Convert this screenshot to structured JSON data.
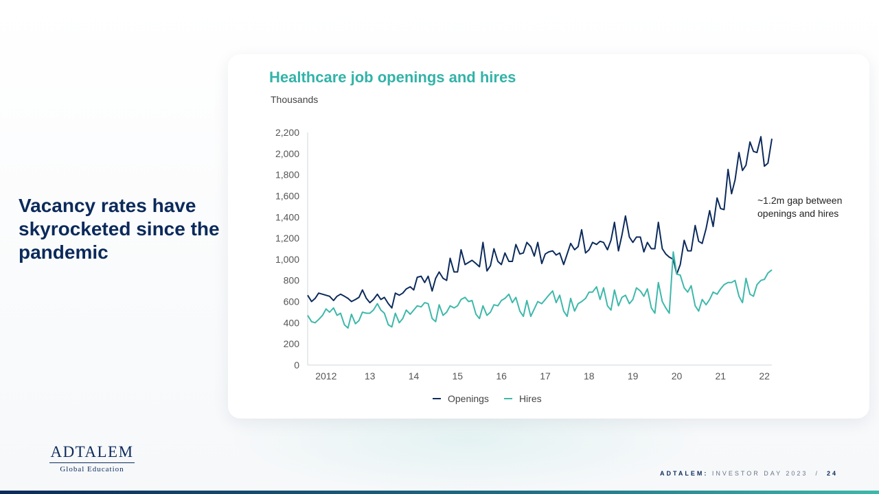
{
  "headline": "Vacancy rates have skyrocketed since the pandemic",
  "chart_title": "Healthcare job openings and hires",
  "unit_label": "Thousands",
  "annotation": "~1.2m gap between openings and hires",
  "legend": {
    "openings": "Openings",
    "hires": "Hires"
  },
  "logo": {
    "main": "ADTALEM",
    "sub": "Global Education"
  },
  "footer": {
    "brand": "ADTALEM:",
    "event": "INVESTOR DAY 2023",
    "separator": "/",
    "page": "24"
  },
  "colors": {
    "openings": "#0b2a5b",
    "hires": "#3db8aa",
    "title": "#32b3a8"
  },
  "chart_data": {
    "type": "line",
    "title": "Healthcare job openings and hires",
    "ylabel": "Thousands",
    "ylim": [
      0,
      2200
    ],
    "yticks": [
      "0",
      "200",
      "400",
      "600",
      "800",
      "1,000",
      "1,200",
      "1,400",
      "1,600",
      "1,800",
      "2,000",
      "2,200"
    ],
    "xticks": [
      {
        "label": "2012",
        "x": 2012.5
      },
      {
        "label": "13",
        "x": 2013.5
      },
      {
        "label": "14",
        "x": 2014.5
      },
      {
        "label": "15",
        "x": 2015.5
      },
      {
        "label": "16",
        "x": 2016.5
      },
      {
        "label": "17",
        "x": 2017.5
      },
      {
        "label": "18",
        "x": 2018.5
      },
      {
        "label": "19",
        "x": 2019.5
      },
      {
        "label": "20",
        "x": 2020.5
      },
      {
        "label": "21",
        "x": 2021.5
      },
      {
        "label": "22",
        "x": 2022.5
      }
    ],
    "xlim": [
      2012.08,
      2022.67
    ],
    "grid": false,
    "legend_position": "bottom",
    "series": [
      {
        "name": "Openings",
        "color": "#0b2a5b",
        "points": [
          [
            2012.08,
            660
          ],
          [
            2012.17,
            600
          ],
          [
            2012.25,
            630
          ],
          [
            2012.33,
            680
          ],
          [
            2012.42,
            670
          ],
          [
            2012.5,
            660
          ],
          [
            2012.58,
            650
          ],
          [
            2012.67,
            610
          ],
          [
            2012.75,
            650
          ],
          [
            2012.83,
            670
          ],
          [
            2012.92,
            650
          ],
          [
            2013.0,
            630
          ],
          [
            2013.08,
            600
          ],
          [
            2013.17,
            620
          ],
          [
            2013.25,
            640
          ],
          [
            2013.33,
            710
          ],
          [
            2013.42,
            630
          ],
          [
            2013.5,
            590
          ],
          [
            2013.58,
            620
          ],
          [
            2013.67,
            670
          ],
          [
            2013.75,
            620
          ],
          [
            2013.83,
            640
          ],
          [
            2013.92,
            580
          ],
          [
            2014.0,
            540
          ],
          [
            2014.08,
            680
          ],
          [
            2014.17,
            660
          ],
          [
            2014.25,
            680
          ],
          [
            2014.33,
            720
          ],
          [
            2014.42,
            740
          ],
          [
            2014.5,
            710
          ],
          [
            2014.58,
            830
          ],
          [
            2014.67,
            840
          ],
          [
            2014.75,
            780
          ],
          [
            2014.83,
            840
          ],
          [
            2014.92,
            700
          ],
          [
            2015.0,
            820
          ],
          [
            2015.08,
            880
          ],
          [
            2015.17,
            820
          ],
          [
            2015.25,
            800
          ],
          [
            2015.33,
            1010
          ],
          [
            2015.42,
            880
          ],
          [
            2015.5,
            880
          ],
          [
            2015.58,
            1090
          ],
          [
            2015.67,
            950
          ],
          [
            2015.75,
            970
          ],
          [
            2015.83,
            990
          ],
          [
            2015.92,
            960
          ],
          [
            2016.0,
            930
          ],
          [
            2016.08,
            1160
          ],
          [
            2016.17,
            890
          ],
          [
            2016.25,
            940
          ],
          [
            2016.33,
            1100
          ],
          [
            2016.42,
            980
          ],
          [
            2016.5,
            950
          ],
          [
            2016.58,
            1060
          ],
          [
            2016.67,
            980
          ],
          [
            2016.75,
            980
          ],
          [
            2016.83,
            1140
          ],
          [
            2016.92,
            1050
          ],
          [
            2017.0,
            1060
          ],
          [
            2017.08,
            1160
          ],
          [
            2017.17,
            1120
          ],
          [
            2017.25,
            1030
          ],
          [
            2017.33,
            1160
          ],
          [
            2017.42,
            960
          ],
          [
            2017.5,
            1050
          ],
          [
            2017.58,
            1070
          ],
          [
            2017.67,
            1080
          ],
          [
            2017.75,
            1040
          ],
          [
            2017.83,
            1060
          ],
          [
            2017.92,
            950
          ],
          [
            2018.0,
            1050
          ],
          [
            2018.08,
            1150
          ],
          [
            2018.17,
            1090
          ],
          [
            2018.25,
            1120
          ],
          [
            2018.33,
            1280
          ],
          [
            2018.42,
            1060
          ],
          [
            2018.5,
            1090
          ],
          [
            2018.58,
            1160
          ],
          [
            2018.67,
            1140
          ],
          [
            2018.75,
            1170
          ],
          [
            2018.83,
            1160
          ],
          [
            2018.92,
            1090
          ],
          [
            2019.0,
            1180
          ],
          [
            2019.08,
            1350
          ],
          [
            2019.17,
            1080
          ],
          [
            2019.25,
            1230
          ],
          [
            2019.33,
            1410
          ],
          [
            2019.42,
            1210
          ],
          [
            2019.5,
            1160
          ],
          [
            2019.58,
            1210
          ],
          [
            2019.67,
            1210
          ],
          [
            2019.75,
            1070
          ],
          [
            2019.83,
            1160
          ],
          [
            2019.92,
            1100
          ],
          [
            2020.0,
            1100
          ],
          [
            2020.08,
            1350
          ],
          [
            2020.17,
            1100
          ],
          [
            2020.25,
            1050
          ],
          [
            2020.33,
            1020
          ],
          [
            2020.42,
            1000
          ],
          [
            2020.5,
            860
          ],
          [
            2020.58,
            950
          ],
          [
            2020.67,
            1180
          ],
          [
            2020.75,
            1080
          ],
          [
            2020.83,
            1080
          ],
          [
            2020.92,
            1320
          ],
          [
            2021.0,
            1170
          ],
          [
            2021.08,
            1150
          ],
          [
            2021.17,
            1290
          ],
          [
            2021.25,
            1460
          ],
          [
            2021.33,
            1310
          ],
          [
            2021.42,
            1580
          ],
          [
            2021.5,
            1480
          ],
          [
            2021.58,
            1470
          ],
          [
            2021.67,
            1850
          ],
          [
            2021.75,
            1620
          ],
          [
            2021.83,
            1750
          ],
          [
            2021.92,
            2010
          ],
          [
            2022.0,
            1840
          ],
          [
            2022.08,
            1890
          ],
          [
            2022.17,
            2110
          ],
          [
            2022.25,
            2020
          ],
          [
            2022.33,
            2010
          ],
          [
            2022.42,
            2160
          ],
          [
            2022.5,
            1880
          ],
          [
            2022.58,
            1910
          ],
          [
            2022.67,
            2140
          ]
        ]
      },
      {
        "name": "Hires",
        "color": "#3db8aa",
        "points": [
          [
            2012.08,
            470
          ],
          [
            2012.17,
            410
          ],
          [
            2012.25,
            400
          ],
          [
            2012.33,
            430
          ],
          [
            2012.42,
            470
          ],
          [
            2012.5,
            530
          ],
          [
            2012.58,
            500
          ],
          [
            2012.67,
            540
          ],
          [
            2012.75,
            470
          ],
          [
            2012.83,
            490
          ],
          [
            2012.92,
            380
          ],
          [
            2013.0,
            350
          ],
          [
            2013.08,
            480
          ],
          [
            2013.17,
            390
          ],
          [
            2013.25,
            420
          ],
          [
            2013.33,
            500
          ],
          [
            2013.42,
            490
          ],
          [
            2013.5,
            490
          ],
          [
            2013.58,
            520
          ],
          [
            2013.67,
            580
          ],
          [
            2013.75,
            520
          ],
          [
            2013.83,
            490
          ],
          [
            2013.92,
            380
          ],
          [
            2014.0,
            360
          ],
          [
            2014.08,
            490
          ],
          [
            2014.17,
            400
          ],
          [
            2014.25,
            440
          ],
          [
            2014.33,
            520
          ],
          [
            2014.42,
            480
          ],
          [
            2014.5,
            520
          ],
          [
            2014.58,
            560
          ],
          [
            2014.67,
            550
          ],
          [
            2014.75,
            590
          ],
          [
            2014.83,
            580
          ],
          [
            2014.92,
            440
          ],
          [
            2015.0,
            410
          ],
          [
            2015.08,
            570
          ],
          [
            2015.17,
            470
          ],
          [
            2015.25,
            500
          ],
          [
            2015.33,
            560
          ],
          [
            2015.42,
            540
          ],
          [
            2015.5,
            560
          ],
          [
            2015.58,
            620
          ],
          [
            2015.67,
            640
          ],
          [
            2015.75,
            600
          ],
          [
            2015.83,
            610
          ],
          [
            2015.92,
            480
          ],
          [
            2016.0,
            440
          ],
          [
            2016.08,
            560
          ],
          [
            2016.17,
            470
          ],
          [
            2016.25,
            500
          ],
          [
            2016.33,
            570
          ],
          [
            2016.42,
            560
          ],
          [
            2016.5,
            610
          ],
          [
            2016.58,
            630
          ],
          [
            2016.67,
            670
          ],
          [
            2016.75,
            590
          ],
          [
            2016.83,
            640
          ],
          [
            2016.92,
            510
          ],
          [
            2017.0,
            460
          ],
          [
            2017.08,
            610
          ],
          [
            2017.17,
            460
          ],
          [
            2017.25,
            530
          ],
          [
            2017.33,
            600
          ],
          [
            2017.42,
            580
          ],
          [
            2017.5,
            620
          ],
          [
            2017.58,
            660
          ],
          [
            2017.67,
            700
          ],
          [
            2017.75,
            590
          ],
          [
            2017.83,
            660
          ],
          [
            2017.92,
            510
          ],
          [
            2018.0,
            460
          ],
          [
            2018.08,
            630
          ],
          [
            2018.17,
            510
          ],
          [
            2018.25,
            580
          ],
          [
            2018.33,
            600
          ],
          [
            2018.42,
            630
          ],
          [
            2018.5,
            690
          ],
          [
            2018.58,
            690
          ],
          [
            2018.67,
            740
          ],
          [
            2018.75,
            620
          ],
          [
            2018.83,
            730
          ],
          [
            2018.92,
            560
          ],
          [
            2019.0,
            520
          ],
          [
            2019.08,
            710
          ],
          [
            2019.17,
            560
          ],
          [
            2019.25,
            640
          ],
          [
            2019.33,
            660
          ],
          [
            2019.42,
            580
          ],
          [
            2019.5,
            620
          ],
          [
            2019.58,
            730
          ],
          [
            2019.67,
            700
          ],
          [
            2019.75,
            650
          ],
          [
            2019.83,
            720
          ],
          [
            2019.92,
            540
          ],
          [
            2020.0,
            490
          ],
          [
            2020.08,
            780
          ],
          [
            2020.17,
            600
          ],
          [
            2020.25,
            540
          ],
          [
            2020.33,
            490
          ],
          [
            2020.42,
            1070
          ],
          [
            2020.5,
            860
          ],
          [
            2020.58,
            850
          ],
          [
            2020.67,
            730
          ],
          [
            2020.75,
            690
          ],
          [
            2020.83,
            750
          ],
          [
            2020.92,
            560
          ],
          [
            2021.0,
            510
          ],
          [
            2021.08,
            620
          ],
          [
            2021.17,
            570
          ],
          [
            2021.25,
            620
          ],
          [
            2021.33,
            690
          ],
          [
            2021.42,
            670
          ],
          [
            2021.5,
            720
          ],
          [
            2021.58,
            760
          ],
          [
            2021.67,
            780
          ],
          [
            2021.75,
            780
          ],
          [
            2021.83,
            800
          ],
          [
            2021.92,
            650
          ],
          [
            2022.0,
            590
          ],
          [
            2022.08,
            820
          ],
          [
            2022.17,
            670
          ],
          [
            2022.25,
            650
          ],
          [
            2022.33,
            760
          ],
          [
            2022.42,
            800
          ],
          [
            2022.5,
            810
          ],
          [
            2022.58,
            870
          ],
          [
            2022.67,
            900
          ]
        ]
      }
    ]
  }
}
